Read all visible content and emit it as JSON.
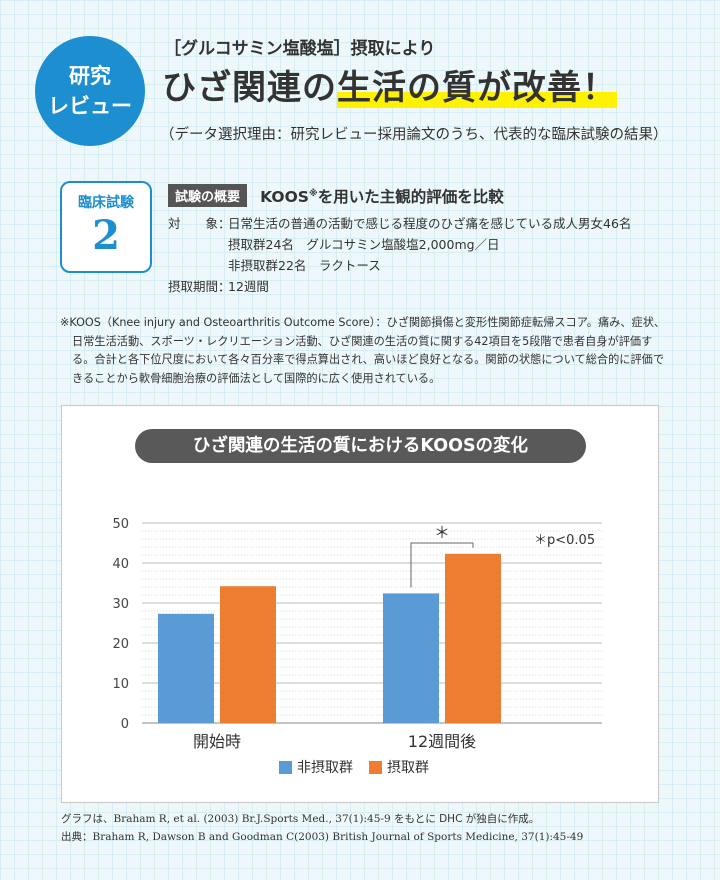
{
  "badge": {
    "line1": "研究",
    "line2": "レビュー"
  },
  "header": {
    "subtitle": "［グルコサミン塩酸塩］摂取により",
    "headline_pre": "ひざ関連の",
    "headline_hl": "生活の質が改善！",
    "reason": "（データ選択理由：研究レビュー採用論文のうち、代表的な臨床試験の結果）"
  },
  "trial": {
    "label": "臨床試験",
    "number": "2"
  },
  "overview": {
    "tag": "試験の概要",
    "title": "KOOS",
    "title_mark": "※",
    "title_rest": "を用いた主観的評価を比較",
    "subject_key": "対　　象：",
    "subject_value": "日常生活の普通の活動で感じる程度のひざ痛を感じている成人男女46名",
    "group1": "摂取群24名　グルコサミン塩酸塩2,000mg／日",
    "group2": "非摂取群22名　ラクトース",
    "period_key": "摂取期間：",
    "period_value": "12週間"
  },
  "note": "※KOOS（Knee injury and Osteoarthritis Outcome Score）：ひざ関節損傷と変形性関節症転帰スコア。痛み、症状、日常生活活動、スポーツ・レクリエーション活動、ひざ関連の生活の質に関する42項目を5段階で患者自身が評価する。合計と各下位尺度において各々百分率で得点算出され、高いほど良好となる。関節の状態について総合的に評価できることから軟骨細胞治療の評価法として国際的に広く使用されている。",
  "chart_data": {
    "type": "bar",
    "title": "ひざ関連の生活の質におけるKOOSの変化",
    "categories": [
      "開始時",
      "12週間後"
    ],
    "series": [
      {
        "name": "非摂取群",
        "color": "#5b9bd5",
        "values": [
          27.3,
          32.4
        ]
      },
      {
        "name": "摂取群",
        "color": "#ed7d31",
        "values": [
          34.2,
          42.3
        ]
      }
    ],
    "ylim": [
      0,
      50
    ],
    "yticks": [
      0,
      10,
      20,
      30,
      40,
      50
    ],
    "grid": true,
    "legend": "bottom",
    "significance_mark": "＊",
    "significance_note": "＊p<0.05"
  },
  "footer": {
    "line1_lead": "グラフは、",
    "line1_cite": "Braham R, et al. (2003) Br.J.Sports Med., 37(1):45-9",
    "line1_tail": " をもとに DHC が独自に作成。",
    "line2_lead": "出典：",
    "line2_cite": "Braham R, Dawson B and Goodman C(2003) British Journal of Sports Medicine, 37(1):45-49"
  }
}
